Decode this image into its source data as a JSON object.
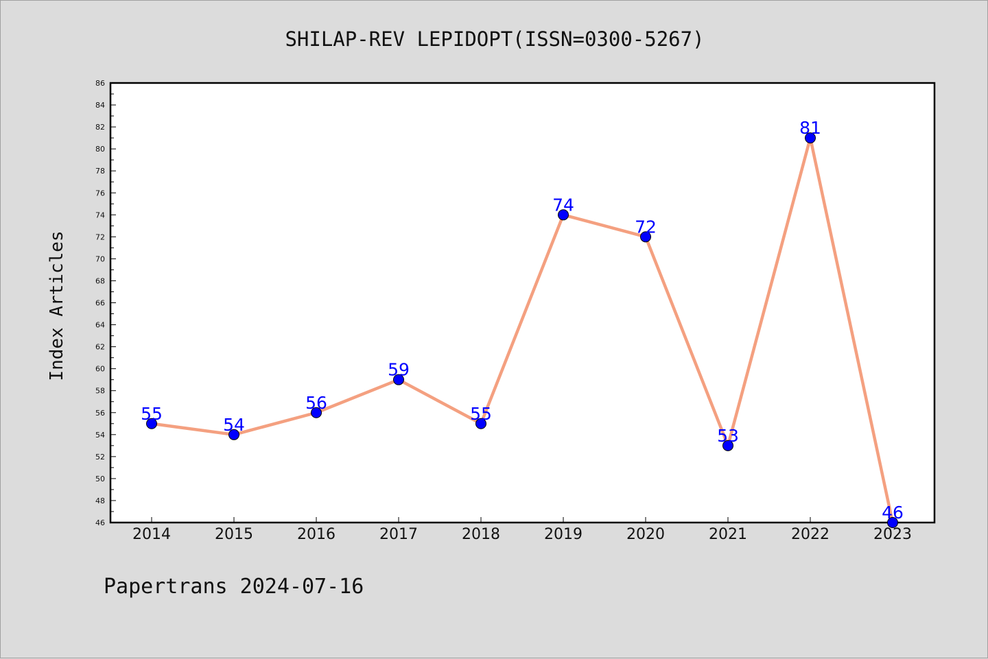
{
  "chart_data": {
    "type": "line",
    "title": "SHILAP-REV LEPIDOPT(ISSN=0300-5267)",
    "ylabel": "Index Articles",
    "xlabel": "",
    "categories": [
      "2014",
      "2015",
      "2016",
      "2017",
      "2018",
      "2019",
      "2020",
      "2021",
      "2022",
      "2023"
    ],
    "values": [
      55,
      54,
      56,
      59,
      55,
      74,
      72,
      53,
      81,
      46
    ],
    "ylim": [
      46,
      86
    ],
    "ytick_step": 2,
    "grid": false,
    "line_color": "#f4a080",
    "marker_color": "#0000ff",
    "label_color": "#0000ff"
  },
  "footer": "Papertrans 2024-07-16"
}
